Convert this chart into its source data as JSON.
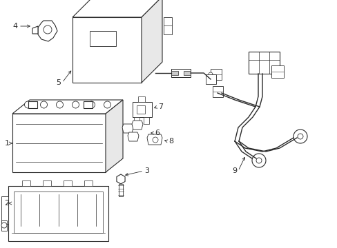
{
  "bg_color": "#ffffff",
  "line_color": "#2a2a2a",
  "lw": 0.8,
  "fs": 8,
  "parts_layout": "battery_wiring_assembly"
}
